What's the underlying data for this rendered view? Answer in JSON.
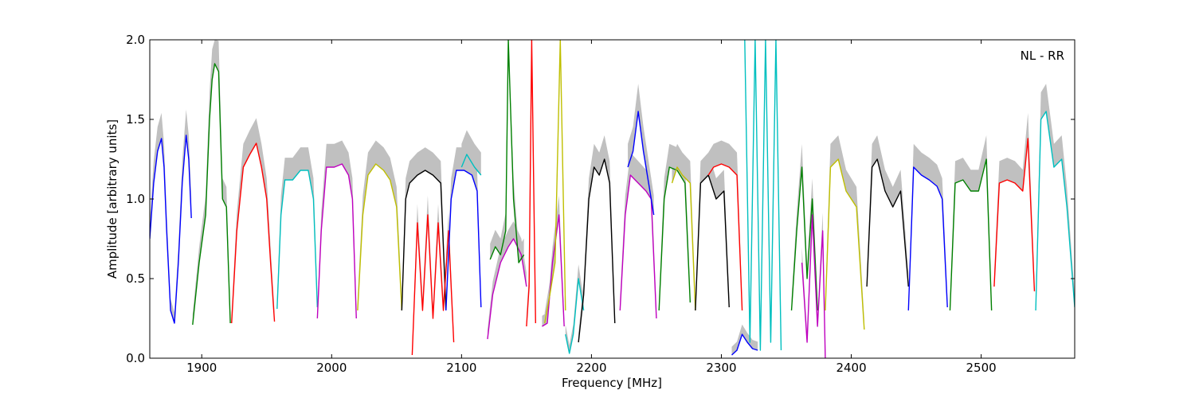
{
  "chart_data": {
    "type": "line",
    "title": "",
    "annotation": "NL - RR",
    "xlabel": "Frequency [MHz]",
    "ylabel": "Amplitude [arbitrary units]",
    "xlim": [
      1860,
      2572
    ],
    "ylim": [
      0.0,
      2.0
    ],
    "xticks": [
      1900,
      2000,
      2100,
      2200,
      2300,
      2400,
      2500
    ],
    "yticks": [
      0.0,
      0.5,
      1.0,
      1.5,
      2.0
    ],
    "xtick_labels": [
      "1900",
      "2000",
      "2100",
      "2200",
      "2300",
      "2400",
      "2500"
    ],
    "ytick_labels": [
      "0.0",
      "0.5",
      "1.0",
      "1.5",
      "2.0"
    ],
    "grid": false,
    "background_color": "#c0c0c0",
    "series": [
      {
        "color": "#0000ff",
        "x": [
          1860,
          1863,
          1866,
          1869,
          1871,
          1873,
          1876,
          1879,
          1882,
          1885,
          1888,
          1890,
          1892
        ],
        "y": [
          0.75,
          1.1,
          1.3,
          1.38,
          1.2,
          0.8,
          0.3,
          0.22,
          0.6,
          1.1,
          1.4,
          1.25,
          0.88
        ]
      },
      {
        "color": "#008000",
        "x": [
          1893,
          1898,
          1903,
          1906,
          1908,
          1910,
          1913,
          1916,
          1919,
          1922
        ],
        "y": [
          0.21,
          0.6,
          0.9,
          1.5,
          1.75,
          1.85,
          1.8,
          1.0,
          0.95,
          0.22
        ]
      },
      {
        "color": "#ff0000",
        "x": [
          1923,
          1927,
          1932,
          1937,
          1942,
          1946,
          1950,
          1953,
          1956
        ],
        "y": [
          0.22,
          0.8,
          1.2,
          1.28,
          1.35,
          1.2,
          1.0,
          0.6,
          0.23
        ]
      },
      {
        "color": "#00bfbf",
        "x": [
          1958,
          1961,
          1964,
          1970,
          1976,
          1982,
          1986,
          1989
        ],
        "y": [
          0.31,
          0.9,
          1.12,
          1.12,
          1.18,
          1.18,
          1.0,
          0.32
        ]
      },
      {
        "color": "#bf00bf",
        "x": [
          1989,
          1992,
          1996,
          2002,
          2008,
          2013,
          2016,
          2019
        ],
        "y": [
          0.25,
          0.8,
          1.2,
          1.2,
          1.22,
          1.15,
          1.0,
          0.25
        ]
      },
      {
        "color": "#bfbf00",
        "x": [
          2020,
          2024,
          2028,
          2034,
          2040,
          2045,
          2050,
          2054
        ],
        "y": [
          0.3,
          0.9,
          1.15,
          1.22,
          1.18,
          1.12,
          0.95,
          0.3
        ]
      },
      {
        "color": "#000000",
        "x": [
          2054,
          2057,
          2060,
          2066,
          2072,
          2078,
          2084,
          2088
        ],
        "y": [
          0.3,
          1.0,
          1.1,
          1.15,
          1.18,
          1.15,
          1.1,
          0.3
        ]
      },
      {
        "color": "#ff0000",
        "x": [
          2062,
          2066,
          2070,
          2074,
          2078,
          2082,
          2086,
          2090,
          2094
        ],
        "y": [
          0.02,
          0.85,
          0.3,
          0.9,
          0.25,
          0.85,
          0.3,
          0.8,
          0.1
        ]
      },
      {
        "color": "#0000ff",
        "x": [
          2088,
          2092,
          2096,
          2102,
          2108,
          2112,
          2115
        ],
        "y": [
          0.3,
          1.0,
          1.18,
          1.18,
          1.15,
          1.05,
          0.32
        ]
      },
      {
        "color": "#00bfbf",
        "x": [
          2100,
          2104,
          2110,
          2115
        ],
        "y": [
          1.2,
          1.28,
          1.2,
          1.15
        ]
      },
      {
        "color": "#bf00bf",
        "x": [
          2120,
          2124,
          2130,
          2136,
          2140,
          2146,
          2150
        ],
        "y": [
          0.12,
          0.4,
          0.6,
          0.7,
          0.75,
          0.65,
          0.45
        ]
      },
      {
        "color": "#008000",
        "x": [
          2122,
          2126,
          2130,
          2134,
          2136,
          2140,
          2144,
          2148
        ],
        "y": [
          0.62,
          0.7,
          0.65,
          0.8,
          2.0,
          1.0,
          0.6,
          0.65
        ]
      },
      {
        "color": "#ff0000",
        "x": [
          2150,
          2152,
          2154,
          2157
        ],
        "y": [
          0.2,
          0.45,
          2.0,
          0.22
        ]
      },
      {
        "color": "#bf00bf",
        "x": [
          2162,
          2166,
          2170,
          2175,
          2179
        ],
        "y": [
          0.2,
          0.22,
          0.6,
          0.9,
          0.2
        ]
      },
      {
        "color": "#bfbf00",
        "x": [
          2164,
          2168,
          2172,
          2176,
          2180
        ],
        "y": [
          0.22,
          0.4,
          0.6,
          2.0,
          0.3
        ]
      },
      {
        "color": "#00bfbf",
        "x": [
          2180,
          2183,
          2186,
          2190,
          2194
        ],
        "y": [
          0.15,
          0.03,
          0.15,
          0.5,
          0.3
        ]
      },
      {
        "color": "#000000",
        "x": [
          2190,
          2194,
          2198,
          2202,
          2206,
          2210,
          2214,
          2218
        ],
        "y": [
          0.1,
          0.4,
          1.0,
          1.2,
          1.15,
          1.25,
          1.1,
          0.22
        ]
      },
      {
        "color": "#bf00bf",
        "x": [
          2222,
          2226,
          2230,
          2236,
          2242,
          2246,
          2250
        ],
        "y": [
          0.3,
          0.9,
          1.15,
          1.1,
          1.05,
          1.0,
          0.25
        ]
      },
      {
        "color": "#0000ff",
        "x": [
          2228,
          2232,
          2236,
          2240,
          2244,
          2248
        ],
        "y": [
          1.2,
          1.3,
          1.55,
          1.3,
          1.1,
          0.9
        ]
      },
      {
        "color": "#008000",
        "x": [
          2252,
          2256,
          2260,
          2266,
          2272,
          2276
        ],
        "y": [
          0.3,
          1.0,
          1.2,
          1.18,
          1.1,
          0.35
        ]
      },
      {
        "color": "#bfbf00",
        "x": [
          2262,
          2266,
          2270,
          2276,
          2280
        ],
        "y": [
          1.1,
          1.2,
          1.15,
          1.1,
          0.3
        ]
      },
      {
        "color": "#000000",
        "x": [
          2280,
          2284,
          2290,
          2296,
          2302,
          2306
        ],
        "y": [
          0.3,
          1.1,
          1.15,
          1.0,
          1.05,
          0.32
        ]
      },
      {
        "color": "#ff0000",
        "x": [
          2290,
          2294,
          2300,
          2306,
          2312,
          2316
        ],
        "y": [
          1.15,
          1.2,
          1.22,
          1.2,
          1.15,
          0.3
        ]
      },
      {
        "color": "#0000ff",
        "x": [
          2308,
          2312,
          2316,
          2320,
          2324,
          2328
        ],
        "y": [
          0.02,
          0.05,
          0.15,
          0.1,
          0.06,
          0.05
        ]
      },
      {
        "color": "#00bfbf",
        "x": [
          2318,
          2322,
          2326,
          2330,
          2334,
          2338,
          2342,
          2346
        ],
        "y": [
          2.0,
          0.1,
          2.0,
          0.05,
          2.0,
          0.1,
          2.0,
          0.05
        ]
      },
      {
        "color": "#008000",
        "x": [
          2354,
          2358,
          2362,
          2366,
          2370,
          2374
        ],
        "y": [
          0.3,
          0.8,
          1.2,
          0.5,
          1.0,
          0.3
        ]
      },
      {
        "color": "#bf00bf",
        "x": [
          2362,
          2366,
          2370,
          2374,
          2378,
          2380
        ],
        "y": [
          0.6,
          0.1,
          0.9,
          0.2,
          0.8,
          0.0
        ]
      },
      {
        "color": "#bfbf00",
        "x": [
          2380,
          2384,
          2390,
          2396,
          2404,
          2410
        ],
        "y": [
          0.3,
          1.2,
          1.25,
          1.05,
          0.95,
          0.18
        ]
      },
      {
        "color": "#000000",
        "x": [
          2412,
          2416,
          2420,
          2426,
          2432,
          2438,
          2444
        ],
        "y": [
          0.45,
          1.2,
          1.25,
          1.05,
          0.95,
          1.05,
          0.45
        ]
      },
      {
        "color": "#0000ff",
        "x": [
          2444,
          2448,
          2454,
          2460,
          2466,
          2470,
          2474
        ],
        "y": [
          0.3,
          1.2,
          1.15,
          1.12,
          1.08,
          1.0,
          0.32
        ]
      },
      {
        "color": "#008000",
        "x": [
          2476,
          2480,
          2486,
          2492,
          2498,
          2504,
          2508
        ],
        "y": [
          0.3,
          1.1,
          1.12,
          1.05,
          1.05,
          1.25,
          0.3
        ]
      },
      {
        "color": "#ff0000",
        "x": [
          2510,
          2514,
          2520,
          2526,
          2532,
          2536,
          2541
        ],
        "y": [
          0.45,
          1.1,
          1.12,
          1.1,
          1.05,
          1.38,
          0.42
        ]
      },
      {
        "color": "#00bfbf",
        "x": [
          2542,
          2546,
          2550,
          2556,
          2562,
          2566,
          2572
        ],
        "y": [
          0.3,
          1.5,
          1.55,
          1.2,
          1.25,
          0.95,
          0.32
        ]
      }
    ]
  }
}
